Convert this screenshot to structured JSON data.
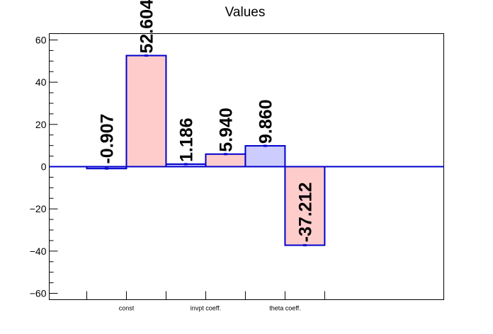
{
  "chart_data": {
    "type": "bar",
    "title": "Values",
    "categories": [
      "const",
      "invpt coeff.",
      "theta coeff."
    ],
    "series": [
      {
        "values": [
          -0.907,
          1.186,
          9.86
        ],
        "fill": "#ccccff",
        "stroke": "#0000cc"
      },
      {
        "values": [
          52.604,
          5.94,
          -37.212
        ],
        "fill": "#ffcccc",
        "stroke": "#0000cc"
      }
    ],
    "data_labels": [
      [
        "-0.907",
        "1.186",
        "9.860"
      ],
      [
        "52.604",
        "5.940",
        "-37.212"
      ]
    ],
    "yticks": [
      60,
      40,
      20,
      0,
      -20,
      -40,
      -60
    ],
    "ylim": [
      -63,
      63
    ],
    "xlabel": "",
    "ylabel": "",
    "grid": false,
    "zero_line_color": "#0000cc"
  }
}
